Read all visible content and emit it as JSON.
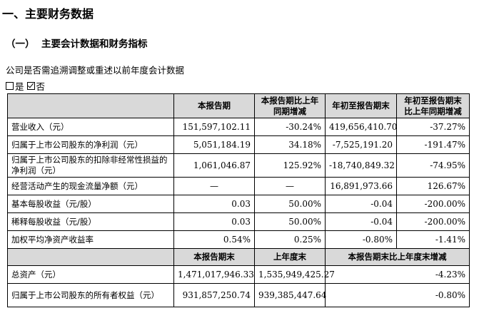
{
  "section_title": "一、主要财务数据",
  "subsection": {
    "num": "（一）",
    "title": "主要会计数据和财务指标"
  },
  "retro_note": "公司是否需追溯调整或重述以前年度会计数据",
  "options": [
    {
      "label": "是",
      "checked": false
    },
    {
      "label": "否",
      "checked": true
    }
  ],
  "table1": {
    "headers": [
      "",
      "本报告期",
      "本报告期比上年同期增减",
      "年初至报告期末",
      "年初至报告期末比上年同期增减"
    ],
    "rows": [
      [
        "营业收入（元）",
        "151,597,102.11",
        "-30.24%",
        "419,656,410.70",
        "-37.27%"
      ],
      [
        "归属于上市公司股东的净利润（元）",
        "5,051,184.19",
        "34.18%",
        "-7,525,191.20",
        "-191.47%"
      ],
      [
        "归属于上市公司股东的扣除非经常性损益的净利润（元）",
        "1,061,046.87",
        "125.92%",
        "-18,740,849.32",
        "-74.95%"
      ],
      [
        "经营活动产生的现金流量净额（元）",
        "—",
        "—",
        "16,891,973.66",
        "126.67%"
      ],
      [
        "基本每股收益（元/股）",
        "0.03",
        "50.00%",
        "-0.04",
        "-200.00%"
      ],
      [
        "稀释每股收益（元/股）",
        "0.03",
        "50.00%",
        "-0.04",
        "-200.00%"
      ],
      [
        "加权平均净资产收益率",
        "0.54%",
        "0.25%",
        "-0.80%",
        "-1.41%"
      ]
    ]
  },
  "table2": {
    "headers": [
      "",
      "本报告期末",
      "上年度末",
      "本报告期末比上年度末增减"
    ],
    "rows": [
      [
        "总资产（元）",
        "1,471,017,946.33",
        "1,535,949,425.27",
        "-4.23%"
      ],
      [
        "归属于上市公司股东的所有者权益（元）",
        "931,857,250.74",
        "939,385,447.64",
        "-0.80%"
      ]
    ]
  }
}
